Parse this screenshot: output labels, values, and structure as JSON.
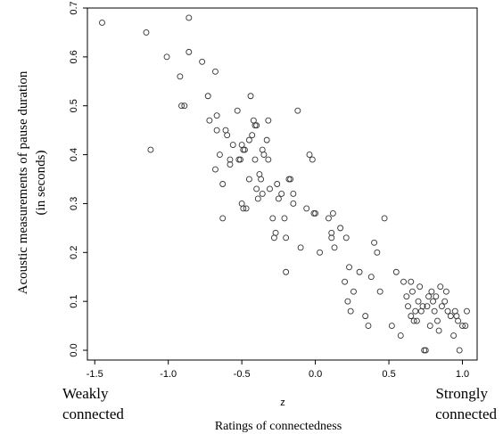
{
  "chart_data": {
    "type": "scatter",
    "xlabel": "z",
    "ylabel_line1": "Acoustic measurements of pause duration",
    "ylabel_line2": "(in seconds)",
    "caption": "Ratings of connectedness",
    "left_note_line1": "Weakly",
    "left_note_line2": "connected",
    "right_note_line1": "Strongly",
    "right_note_line2": "connected",
    "xlim": [
      -1.55,
      1.1
    ],
    "ylim": [
      -0.02,
      0.7
    ],
    "x_ticks": [
      "-1.5",
      "-1.0",
      "-0.5",
      "0.0",
      "0.5",
      "1.0"
    ],
    "y_ticks": [
      "0.0",
      "0.1",
      "0.2",
      "0.3",
      "0.4",
      "0.5",
      "0.6",
      "0.7"
    ],
    "grid": false,
    "point_color": "#333333",
    "points": [
      [
        -1.45,
        0.67
      ],
      [
        -1.15,
        0.65
      ],
      [
        -1.12,
        0.41
      ],
      [
        -1.01,
        0.6
      ],
      [
        -0.92,
        0.56
      ],
      [
        -0.91,
        0.5
      ],
      [
        -0.89,
        0.5
      ],
      [
        -0.86,
        0.68
      ],
      [
        -0.86,
        0.61
      ],
      [
        -0.77,
        0.59
      ],
      [
        -0.73,
        0.52
      ],
      [
        -0.72,
        0.47
      ],
      [
        -0.68,
        0.57
      ],
      [
        -0.67,
        0.48
      ],
      [
        -0.67,
        0.45
      ],
      [
        -0.68,
        0.37
      ],
      [
        -0.65,
        0.4
      ],
      [
        -0.63,
        0.34
      ],
      [
        -0.63,
        0.27
      ],
      [
        -0.61,
        0.45
      ],
      [
        -0.6,
        0.44
      ],
      [
        -0.58,
        0.39
      ],
      [
        -0.58,
        0.38
      ],
      [
        -0.56,
        0.42
      ],
      [
        -0.53,
        0.49
      ],
      [
        -0.52,
        0.39
      ],
      [
        -0.51,
        0.39
      ],
      [
        -0.5,
        0.42
      ],
      [
        -0.49,
        0.41
      ],
      [
        -0.48,
        0.41
      ],
      [
        -0.5,
        0.3
      ],
      [
        -0.49,
        0.29
      ],
      [
        -0.47,
        0.29
      ],
      [
        -0.45,
        0.35
      ],
      [
        -0.45,
        0.43
      ],
      [
        -0.44,
        0.52
      ],
      [
        -0.43,
        0.44
      ],
      [
        -0.42,
        0.47
      ],
      [
        -0.41,
        0.46
      ],
      [
        -0.4,
        0.46
      ],
      [
        -0.41,
        0.39
      ],
      [
        -0.4,
        0.33
      ],
      [
        -0.39,
        0.31
      ],
      [
        -0.38,
        0.36
      ],
      [
        -0.37,
        0.35
      ],
      [
        -0.36,
        0.41
      ],
      [
        -0.36,
        0.32
      ],
      [
        -0.35,
        0.4
      ],
      [
        -0.33,
        0.43
      ],
      [
        -0.32,
        0.47
      ],
      [
        -0.32,
        0.39
      ],
      [
        -0.31,
        0.33
      ],
      [
        -0.29,
        0.27
      ],
      [
        -0.28,
        0.23
      ],
      [
        -0.27,
        0.24
      ],
      [
        -0.26,
        0.34
      ],
      [
        -0.25,
        0.31
      ],
      [
        -0.23,
        0.32
      ],
      [
        -0.21,
        0.27
      ],
      [
        -0.2,
        0.16
      ],
      [
        -0.2,
        0.23
      ],
      [
        -0.18,
        0.35
      ],
      [
        -0.17,
        0.35
      ],
      [
        -0.15,
        0.3
      ],
      [
        -0.15,
        0.32
      ],
      [
        -0.12,
        0.49
      ],
      [
        -0.1,
        0.21
      ],
      [
        -0.06,
        0.29
      ],
      [
        -0.04,
        0.4
      ],
      [
        -0.02,
        0.39
      ],
      [
        -0.01,
        0.28
      ],
      [
        0.0,
        0.28
      ],
      [
        0.03,
        0.2
      ],
      [
        0.09,
        0.27
      ],
      [
        0.11,
        0.24
      ],
      [
        0.11,
        0.23
      ],
      [
        0.12,
        0.28
      ],
      [
        0.13,
        0.21
      ],
      [
        0.17,
        0.25
      ],
      [
        0.2,
        0.14
      ],
      [
        0.21,
        0.23
      ],
      [
        0.22,
        0.1
      ],
      [
        0.23,
        0.17
      ],
      [
        0.24,
        0.08
      ],
      [
        0.26,
        0.12
      ],
      [
        0.3,
        0.16
      ],
      [
        0.34,
        0.07
      ],
      [
        0.36,
        0.05
      ],
      [
        0.38,
        0.15
      ],
      [
        0.4,
        0.22
      ],
      [
        0.42,
        0.2
      ],
      [
        0.44,
        0.12
      ],
      [
        0.47,
        0.27
      ],
      [
        0.52,
        0.05
      ],
      [
        0.55,
        0.16
      ],
      [
        0.58,
        0.03
      ],
      [
        0.6,
        0.14
      ],
      [
        0.62,
        0.11
      ],
      [
        0.63,
        0.09
      ],
      [
        0.65,
        0.07
      ],
      [
        0.65,
        0.14
      ],
      [
        0.66,
        0.12
      ],
      [
        0.67,
        0.06
      ],
      [
        0.68,
        0.08
      ],
      [
        0.69,
        0.06
      ],
      [
        0.7,
        0.1
      ],
      [
        0.71,
        0.13
      ],
      [
        0.72,
        0.08
      ],
      [
        0.73,
        0.09
      ],
      [
        0.74,
        0.0
      ],
      [
        0.75,
        0.0
      ],
      [
        0.76,
        0.09
      ],
      [
        0.77,
        0.11
      ],
      [
        0.78,
        0.05
      ],
      [
        0.79,
        0.12
      ],
      [
        0.8,
        0.1
      ],
      [
        0.81,
        0.08
      ],
      [
        0.82,
        0.11
      ],
      [
        0.83,
        0.06
      ],
      [
        0.84,
        0.04
      ],
      [
        0.85,
        0.13
      ],
      [
        0.86,
        0.09
      ],
      [
        0.88,
        0.1
      ],
      [
        0.89,
        0.12
      ],
      [
        0.9,
        0.08
      ],
      [
        0.92,
        0.07
      ],
      [
        0.94,
        0.03
      ],
      [
        0.95,
        0.08
      ],
      [
        0.96,
        0.07
      ],
      [
        0.97,
        0.06
      ],
      [
        0.98,
        0.0
      ],
      [
        1.0,
        0.05
      ],
      [
        1.02,
        0.05
      ],
      [
        1.03,
        0.08
      ]
    ]
  }
}
